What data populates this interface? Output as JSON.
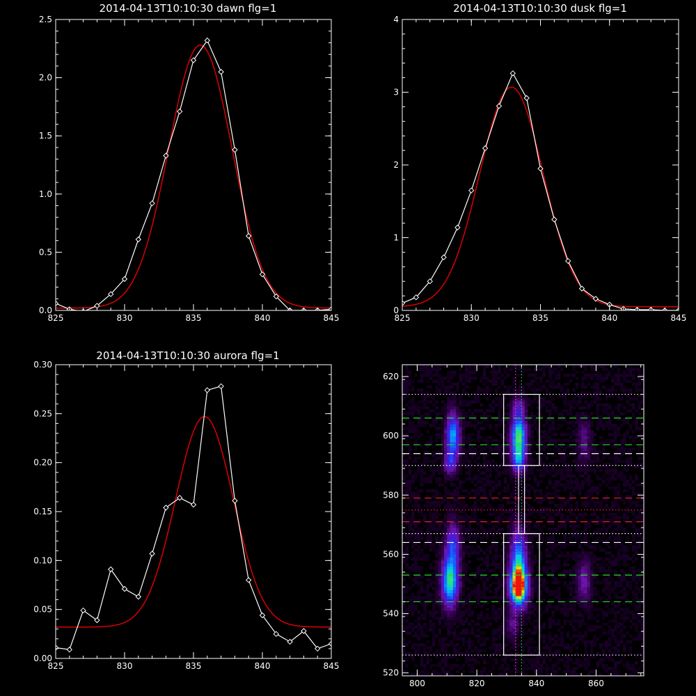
{
  "chart_data": [
    {
      "type": "line",
      "title": "2014-04-13T10:10:30 dawn flg=1",
      "xlim": [
        825,
        845
      ],
      "ylim": [
        0,
        2.5
      ],
      "xticks": [
        "825",
        "830",
        "835",
        "840",
        "845"
      ],
      "yticks": [
        "0.0",
        "0.5",
        "1.0",
        "1.5",
        "2.0",
        "2.5"
      ],
      "series": [
        {
          "style": "white-line-diamonds",
          "color": "#ffffff",
          "x": [
            825,
            826,
            827,
            828,
            829,
            830,
            831,
            832,
            833,
            834,
            835,
            836,
            837,
            838,
            839,
            840,
            841,
            842,
            843,
            844,
            845
          ],
          "y": [
            0.06,
            0.01,
            -0.01,
            0.04,
            0.14,
            0.27,
            0.61,
            0.92,
            1.33,
            1.71,
            2.15,
            2.32,
            2.05,
            1.38,
            0.64,
            0.31,
            0.12,
            0.0,
            0.0,
            0.0,
            0.01
          ]
        },
        {
          "style": "red-gaussian-fit",
          "color": "#dd0000",
          "fit": {
            "amplitude": 2.26,
            "center": 835.5,
            "sigma": 2.3,
            "offset": 0.02
          }
        }
      ]
    },
    {
      "type": "line",
      "title": "2014-04-13T10:10:30 dusk flg=1",
      "xlim": [
        825,
        845
      ],
      "ylim": [
        0,
        4
      ],
      "xticks": [
        "825",
        "830",
        "835",
        "840",
        "845"
      ],
      "yticks": [
        "0",
        "1",
        "2",
        "3",
        "4"
      ],
      "series": [
        {
          "style": "white-line-diamonds",
          "color": "#ffffff",
          "x": [
            825,
            826,
            827,
            828,
            829,
            830,
            831,
            832,
            833,
            834,
            835,
            836,
            837,
            838,
            839,
            840,
            841,
            842,
            843,
            844,
            845
          ],
          "y": [
            0.1,
            0.18,
            0.4,
            0.73,
            1.14,
            1.65,
            2.23,
            2.81,
            3.26,
            2.92,
            1.95,
            1.25,
            0.68,
            0.3,
            0.16,
            0.08,
            0.02,
            0.01,
            0.01,
            0.0,
            0.0
          ]
        },
        {
          "style": "red-gaussian-fit",
          "color": "#dd0000",
          "fit": {
            "amplitude": 3.02,
            "center": 832.9,
            "sigma": 2.3,
            "offset": 0.05
          }
        }
      ]
    },
    {
      "type": "line",
      "title": "2014-04-13T10:10:30 aurora flg=1",
      "xlim": [
        825,
        845
      ],
      "ylim": [
        0,
        0.3
      ],
      "xticks": [
        "825",
        "830",
        "835",
        "840",
        "845"
      ],
      "yticks": [
        "0.00",
        "0.05",
        "0.10",
        "0.15",
        "0.20",
        "0.25",
        "0.30"
      ],
      "series": [
        {
          "style": "white-line-diamonds",
          "color": "#ffffff",
          "x": [
            825,
            826,
            827,
            828,
            829,
            830,
            831,
            832,
            833,
            834,
            835,
            836,
            837,
            838,
            839,
            840,
            841,
            842,
            843,
            844,
            845
          ],
          "y": [
            0.011,
            0.009,
            0.049,
            0.039,
            0.091,
            0.071,
            0.063,
            0.107,
            0.154,
            0.164,
            0.157,
            0.274,
            0.278,
            0.161,
            0.08,
            0.044,
            0.025,
            0.017,
            0.028,
            0.01,
            0.015
          ]
        },
        {
          "style": "red-gaussian-fit",
          "color": "#dd0000",
          "fit": {
            "amplitude": 0.215,
            "center": 835.8,
            "sigma": 2.1,
            "offset": 0.032
          }
        }
      ]
    },
    {
      "type": "heatmap",
      "title": "",
      "xlim": [
        795,
        876
      ],
      "ylim": [
        519,
        624
      ],
      "xticks": [
        "800",
        "820",
        "840",
        "860"
      ],
      "yticks": [
        "520",
        "540",
        "560",
        "580",
        "600",
        "620"
      ],
      "blobs": [
        {
          "x": 811,
          "y": 551,
          "sx": 1.8,
          "sy": 5.5,
          "amp": 0.7
        },
        {
          "x": 812,
          "y": 563,
          "sx": 1.6,
          "sy": 5,
          "amp": 0.35
        },
        {
          "x": 812,
          "y": 600,
          "sx": 1.5,
          "sy": 5,
          "amp": 0.55
        },
        {
          "x": 811,
          "y": 591,
          "sx": 1.3,
          "sy": 2.5,
          "amp": 0.3
        },
        {
          "x": 834,
          "y": 549,
          "sx": 1.9,
          "sy": 4,
          "amp": 1.0
        },
        {
          "x": 834,
          "y": 557,
          "sx": 1.7,
          "sy": 7,
          "amp": 0.6
        },
        {
          "x": 834,
          "y": 600,
          "sx": 1.6,
          "sy": 4.5,
          "amp": 0.75
        },
        {
          "x": 834,
          "y": 592,
          "sx": 1.5,
          "sy": 3,
          "amp": 0.45
        },
        {
          "x": 856,
          "y": 551,
          "sx": 1.6,
          "sy": 5,
          "amp": 0.2
        },
        {
          "x": 856,
          "y": 598,
          "sx": 1.5,
          "sy": 5,
          "amp": 0.15
        },
        {
          "x": 832,
          "y": 536,
          "sx": 1.5,
          "sy": 3,
          "amp": 0.15
        },
        {
          "x": 834,
          "y": 610,
          "sx": 1.5,
          "sy": 2.5,
          "amp": 0.2
        }
      ],
      "background": 0.06,
      "hlines": [
        {
          "y": 614,
          "color": "#ffffff",
          "style": "dotted"
        },
        {
          "y": 606,
          "color": "#22dd22",
          "style": "dashed"
        },
        {
          "y": 597,
          "color": "#22dd22",
          "style": "dashed"
        },
        {
          "y": 594,
          "color": "#ffffff",
          "style": "dashed"
        },
        {
          "y": 590,
          "color": "#ffffff",
          "style": "dotted"
        },
        {
          "y": 579,
          "color": "#dd2222",
          "style": "dashed"
        },
        {
          "y": 575,
          "color": "#dd2222",
          "style": "dotted"
        },
        {
          "y": 571,
          "color": "#dd2222",
          "style": "dashed"
        },
        {
          "y": 567,
          "color": "#ffffff",
          "style": "dotted"
        },
        {
          "y": 564,
          "color": "#ffffff",
          "style": "dashed"
        },
        {
          "y": 553,
          "color": "#22dd22",
          "style": "dashed"
        },
        {
          "y": 544,
          "color": "#22dd22",
          "style": "dashed"
        },
        {
          "y": 526,
          "color": "#ffffff",
          "style": "dotted"
        }
      ],
      "vlines": [
        {
          "x": 833,
          "color": "#dd44dd",
          "style": "dotted"
        },
        {
          "x": 835,
          "color": "#22dd22",
          "style": "dotted"
        }
      ],
      "boxes": [
        {
          "x0": 829,
          "x1": 841,
          "y0": 590,
          "y1": 614
        },
        {
          "x0": 829,
          "x1": 841,
          "y0": 526,
          "y1": 567
        },
        {
          "x0": 834,
          "x1": 836,
          "y0": 567,
          "y1": 590
        }
      ]
    }
  ]
}
